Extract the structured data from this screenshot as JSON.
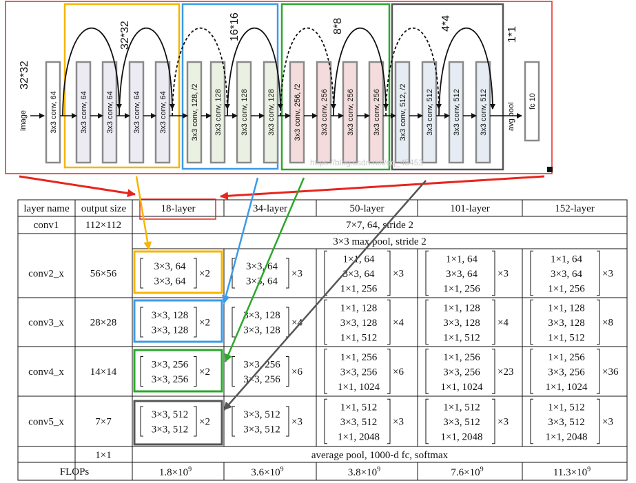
{
  "network": {
    "input": {
      "size": "32*32",
      "label": "image"
    },
    "groups": [
      {
        "color": "#f7b500",
        "size": "32*32",
        "layers": [
          {
            "label": "3x3 conv, 64",
            "fill": "#ffffff"
          },
          {
            "label": "3x3 conv, 64",
            "fill": "#eceaf2"
          },
          {
            "label": "3x3 conv, 64",
            "fill": "#eceaf2"
          },
          {
            "label": "3x3 conv, 64",
            "fill": "#eceaf2"
          },
          {
            "label": "3x3 conv, 64",
            "fill": "#eceaf2"
          }
        ]
      },
      {
        "color": "#3a9be8",
        "size": "16*16",
        "layers": [
          {
            "label": "3x3 conv, 128, /2",
            "fill": "#eaf1e2"
          },
          {
            "label": "3x3 conv, 128",
            "fill": "#eaf1e2"
          },
          {
            "label": "3x3 conv, 128",
            "fill": "#eaf1e2"
          },
          {
            "label": "3x3 conv, 128",
            "fill": "#eaf1e2"
          }
        ]
      },
      {
        "color": "#2aa82a",
        "size": "8*8",
        "layers": [
          {
            "label": "3x3 conv, 256, /2",
            "fill": "#f4dcdc"
          },
          {
            "label": "3x3 conv, 256",
            "fill": "#f4dcdc"
          },
          {
            "label": "3x3 conv, 256",
            "fill": "#f4dcdc"
          },
          {
            "label": "3x3 conv, 256",
            "fill": "#f4dcdc"
          }
        ]
      },
      {
        "color": "#555555",
        "size": "4*4",
        "layers": [
          {
            "label": "3x3 conv, 512, /2",
            "fill": "#e6ecf3"
          },
          {
            "label": "3x3 conv, 512",
            "fill": "#e6ecf3"
          },
          {
            "label": "3x3 conv, 512",
            "fill": "#e6ecf3"
          },
          {
            "label": "3x3 conv, 512",
            "fill": "#e6ecf3"
          }
        ]
      }
    ],
    "pool_label": "avg pool",
    "fc": {
      "size": "1*1",
      "label": "fc 10"
    },
    "watermark": "https://blog.csdn.net/qq_45453"
  },
  "table": {
    "headers": [
      "layer name",
      "output size",
      "18-layer",
      "34-layer",
      "50-layer",
      "101-layer",
      "152-layer"
    ],
    "conv1": {
      "name": "conv1",
      "size": "112×112",
      "desc": "7×7, 64, stride 2"
    },
    "maxpool": "3×3 max pool, stride 2",
    "stages": [
      {
        "name": "conv2_x",
        "size": "56×56",
        "blocks": [
          {
            "lines": [
              "3×3, 64",
              "3×3, 64"
            ],
            "mult": "×2"
          },
          {
            "lines": [
              "3×3, 64",
              "3×3, 64"
            ],
            "mult": "×3"
          },
          {
            "lines": [
              "1×1, 64",
              "3×3, 64",
              "1×1, 256"
            ],
            "mult": "×3"
          },
          {
            "lines": [
              "1×1, 64",
              "3×3, 64",
              "1×1, 256"
            ],
            "mult": "×3"
          },
          {
            "lines": [
              "1×1, 64",
              "3×3, 64",
              "1×1, 256"
            ],
            "mult": "×3"
          }
        ]
      },
      {
        "name": "conv3_x",
        "size": "28×28",
        "blocks": [
          {
            "lines": [
              "3×3, 128",
              "3×3, 128"
            ],
            "mult": "×2"
          },
          {
            "lines": [
              "3×3, 128",
              "3×3, 128"
            ],
            "mult": "×4"
          },
          {
            "lines": [
              "1×1, 128",
              "3×3, 128",
              "1×1, 512"
            ],
            "mult": "×4"
          },
          {
            "lines": [
              "1×1, 128",
              "3×3, 128",
              "1×1, 512"
            ],
            "mult": "×4"
          },
          {
            "lines": [
              "1×1, 128",
              "3×3, 128",
              "1×1, 512"
            ],
            "mult": "×8"
          }
        ]
      },
      {
        "name": "conv4_x",
        "size": "14×14",
        "blocks": [
          {
            "lines": [
              "3×3, 256",
              "3×3, 256"
            ],
            "mult": "×2"
          },
          {
            "lines": [
              "3×3, 256",
              "3×3, 256"
            ],
            "mult": "×6"
          },
          {
            "lines": [
              "1×1, 256",
              "3×3, 256",
              "1×1, 1024"
            ],
            "mult": "×6"
          },
          {
            "lines": [
              "1×1, 256",
              "3×3, 256",
              "1×1, 1024"
            ],
            "mult": "×23"
          },
          {
            "lines": [
              "1×1, 256",
              "3×3, 256",
              "1×1, 1024"
            ],
            "mult": "×36"
          }
        ]
      },
      {
        "name": "conv5_x",
        "size": "7×7",
        "blocks": [
          {
            "lines": [
              "3×3, 512",
              "3×3, 512"
            ],
            "mult": "×2"
          },
          {
            "lines": [
              "3×3, 512",
              "3×3, 512"
            ],
            "mult": "×3"
          },
          {
            "lines": [
              "1×1, 512",
              "3×3, 512",
              "1×1, 2048"
            ],
            "mult": "×3"
          },
          {
            "lines": [
              "1×1, 512",
              "3×3, 512",
              "1×1, 2048"
            ],
            "mult": "×3"
          },
          {
            "lines": [
              "1×1, 512",
              "3×3, 512",
              "1×1, 2048"
            ],
            "mult": "×3"
          }
        ]
      }
    ],
    "final": {
      "size": "1×1",
      "desc": "average pool, 1000-d fc, softmax"
    },
    "flops": {
      "name": "FLOPs",
      "values": [
        {
          "base": "1.8×10",
          "exp": "9"
        },
        {
          "base": "3.6×10",
          "exp": "9"
        },
        {
          "base": "3.8×10",
          "exp": "9"
        },
        {
          "base": "7.6×10",
          "exp": "9"
        },
        {
          "base": "11.3×10",
          "exp": "9"
        }
      ]
    }
  }
}
